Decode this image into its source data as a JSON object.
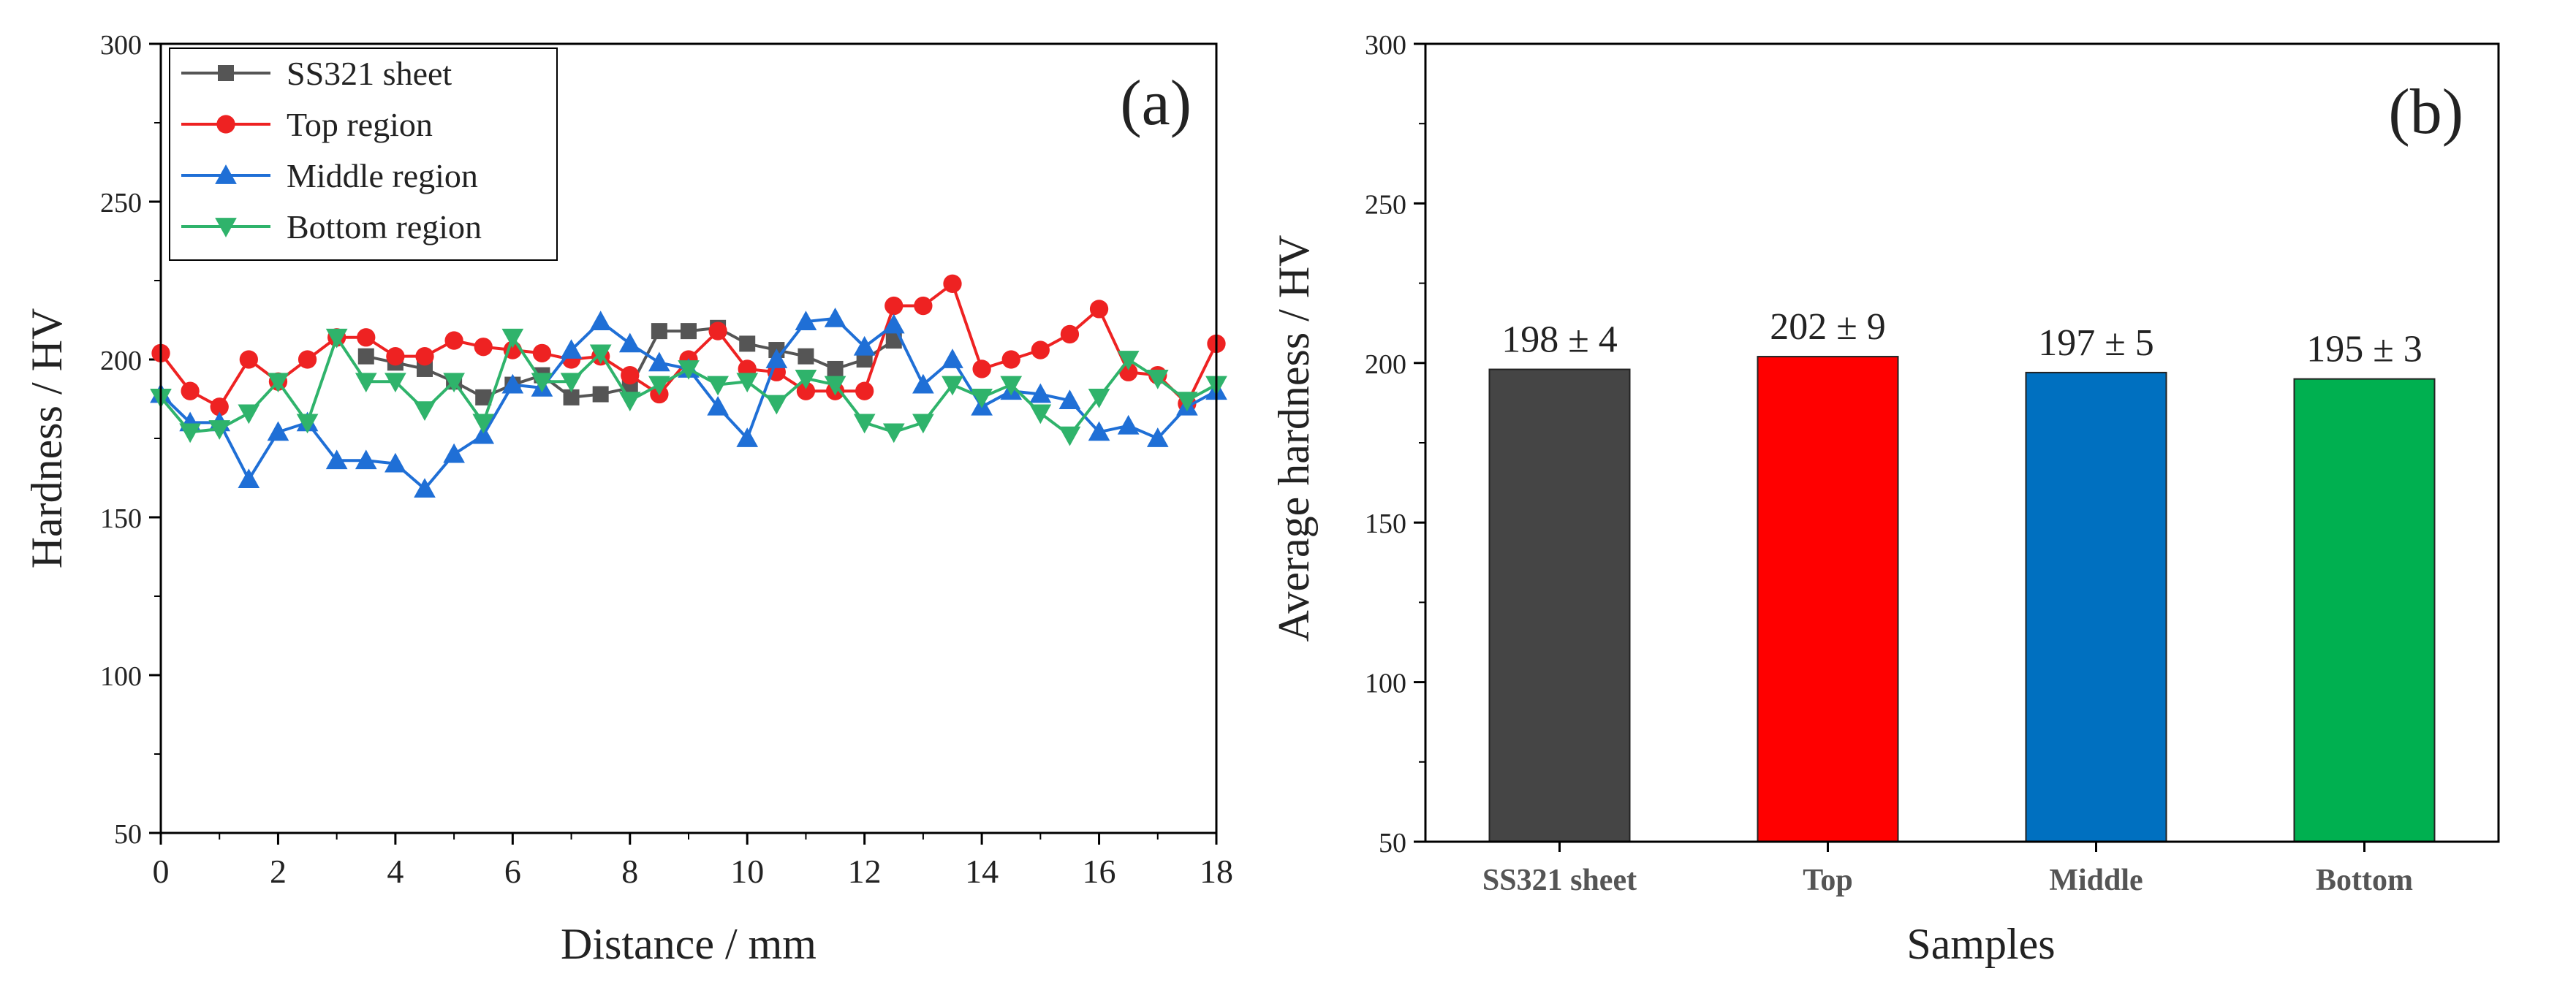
{
  "chart_data": [
    {
      "type": "line",
      "panel_label": "(a)",
      "xlabel": "Distance / mm",
      "ylabel": "Hardness / HV",
      "xlim": [
        0,
        18
      ],
      "ylim": [
        50,
        300
      ],
      "xticks": [
        0,
        2,
        4,
        6,
        8,
        10,
        12,
        14,
        16,
        18
      ],
      "yticks": [
        50,
        100,
        150,
        200,
        250,
        300
      ],
      "legend_position": "top-left",
      "series": [
        {
          "name": "SS321 sheet",
          "color": "#555555",
          "marker": "square",
          "x": [
            3.5,
            4,
            4.5,
            5,
            5.5,
            6,
            6.5,
            7,
            7.5,
            8,
            8.5,
            9,
            9.5,
            10,
            10.5,
            11,
            11.5,
            12,
            12.5
          ],
          "y": [
            201,
            199,
            197,
            193,
            188,
            192,
            195,
            188,
            189,
            191,
            209,
            209,
            210,
            205,
            203,
            201,
            197,
            200,
            206
          ]
        },
        {
          "name": "Top region",
          "color": "#ee2222",
          "marker": "circle",
          "x": [
            0,
            0.5,
            1,
            1.5,
            2,
            2.5,
            3,
            3.5,
            4,
            4.5,
            5,
            5.5,
            6,
            6.5,
            7,
            7.5,
            8,
            8.5,
            9,
            9.5,
            10,
            10.5,
            11,
            11.5,
            12,
            12.5,
            13,
            13.5,
            14,
            14.5,
            15,
            15.5,
            16,
            16.5,
            17,
            17.5,
            18
          ],
          "y": [
            202,
            190,
            185,
            200,
            193,
            200,
            207,
            207,
            201,
            201,
            206,
            204,
            203,
            202,
            200,
            201,
            195,
            189,
            200,
            209,
            197,
            196,
            190,
            190,
            190,
            217,
            217,
            224,
            197,
            200,
            203,
            208,
            216,
            196,
            195,
            186,
            205
          ]
        },
        {
          "name": "Middle region",
          "color": "#1f6fd6",
          "marker": "triangle-up",
          "x": [
            0,
            0.5,
            1,
            1.5,
            2,
            2.5,
            3,
            3.5,
            4,
            4.5,
            5,
            5.5,
            6,
            6.5,
            7,
            7.5,
            8,
            8.5,
            9,
            9.5,
            10,
            10.5,
            11,
            11.5,
            12,
            12.5,
            13,
            13.5,
            14,
            14.5,
            15,
            15.5,
            16,
            16.5,
            17,
            17.5,
            18
          ],
          "y": [
            189,
            180,
            180,
            162,
            177,
            180,
            168,
            168,
            167,
            159,
            170,
            176,
            192,
            191,
            203,
            212,
            205,
            199,
            197,
            185,
            175,
            200,
            212,
            213,
            204,
            211,
            192,
            200,
            185,
            190,
            189,
            187,
            177,
            179,
            175,
            185,
            190
          ]
        },
        {
          "name": "Bottom region",
          "color": "#2fb36b",
          "marker": "triangle-down",
          "x": [
            0,
            0.5,
            1,
            1.5,
            2,
            2.5,
            3,
            3.5,
            4,
            4.5,
            5,
            5.5,
            6,
            6.5,
            7,
            7.5,
            8,
            8.5,
            9,
            9.5,
            10,
            10.5,
            11,
            11.5,
            12,
            12.5,
            13,
            13.5,
            14,
            14.5,
            15,
            15.5,
            16,
            16.5,
            17,
            17.5,
            18
          ],
          "y": [
            188,
            177,
            178,
            183,
            193,
            180,
            207,
            193,
            193,
            184,
            193,
            180,
            207,
            193,
            193,
            202,
            187,
            192,
            197,
            192,
            193,
            186,
            194,
            192,
            180,
            177,
            180,
            192,
            188,
            192,
            183,
            176,
            188,
            200,
            194,
            187,
            192
          ]
        }
      ]
    },
    {
      "type": "bar",
      "panel_label": "(b)",
      "xlabel": "Samples",
      "ylabel": "Average hardness / HV",
      "ylim": [
        50,
        300
      ],
      "yticks": [
        50,
        100,
        150,
        200,
        250,
        300
      ],
      "categories": [
        "SS321 sheet",
        "Top",
        "Middle",
        "Bottom"
      ],
      "values": [
        198,
        202,
        197,
        195
      ],
      "labels": [
        "198 ± 4",
        "202 ± 9",
        "197 ± 5",
        "195 ± 3"
      ],
      "colors": [
        "#454545",
        "#ff0000",
        "#0070c0",
        "#00b050"
      ]
    }
  ]
}
